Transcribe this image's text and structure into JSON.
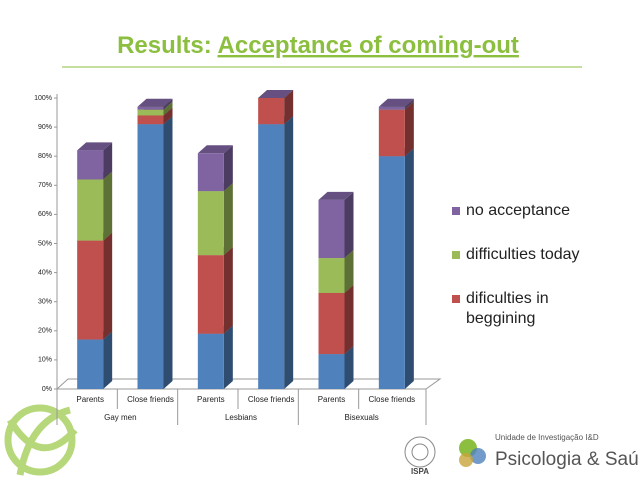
{
  "chart_data": {
    "type": "bar3d_stacked",
    "title": "Results: Acceptance of coming-out",
    "categories": [
      "Parents",
      "Close friends",
      "Parents",
      "Close friends",
      "Parents",
      "Close friends"
    ],
    "groups": [
      "Gay men",
      "Lesbians",
      "Bisexuals"
    ],
    "series": [
      {
        "name": null,
        "color": "#4f81bd",
        "values": [
          17,
          91,
          19,
          91,
          12,
          80
        ]
      },
      {
        "name": "dificulties in beggining",
        "color": "#c0504d",
        "values": [
          34,
          3,
          27,
          9,
          21,
          16
        ]
      },
      {
        "name": "difficulties today",
        "color": "#9bbb59",
        "values": [
          21,
          2,
          22,
          0,
          12,
          0
        ]
      },
      {
        "name": "no acceptance",
        "color": "#8064a2",
        "values": [
          10,
          1,
          13,
          0,
          20,
          1
        ]
      }
    ],
    "ylim": [
      0,
      100
    ],
    "yticks": [
      {
        "value": 0,
        "label": "0%"
      },
      {
        "value": 10,
        "label": "10%"
      },
      {
        "value": 20,
        "label": "20%"
      },
      {
        "value": 30,
        "label": "30%"
      },
      {
        "value": 40,
        "label": "40%"
      },
      {
        "value": 50,
        "label": "50%"
      },
      {
        "value": 60,
        "label": "60%"
      },
      {
        "value": 70,
        "label": "70%"
      },
      {
        "value": 80,
        "label": "80%"
      },
      {
        "value": 90,
        "label": "90%"
      },
      {
        "value": 100,
        "label": "100%"
      }
    ],
    "grid": false,
    "legend": "right"
  },
  "footer": {
    "unit": "Unidade de Investigação I&D",
    "brand": "Psicologia & Saúde",
    "institute": "ISPA"
  }
}
